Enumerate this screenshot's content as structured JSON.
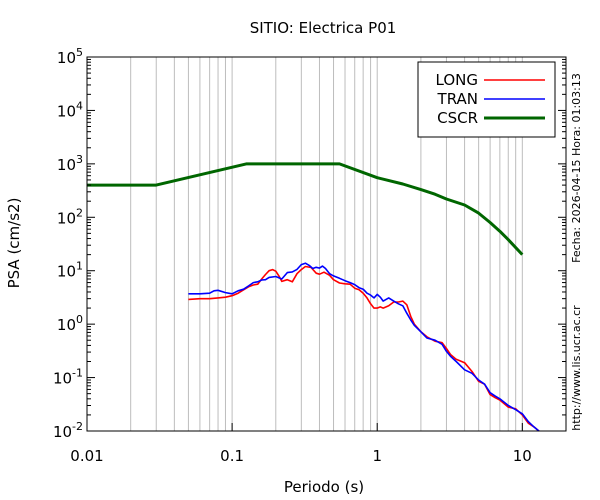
{
  "chart_data": {
    "type": "line",
    "title": "SITIO: Electrica P01",
    "xlabel": "Periodo (s)",
    "ylabel": "PSA (cm/s2)",
    "x_scale": "log",
    "y_scale": "log",
    "xlim": [
      0.01,
      20
    ],
    "ylim": [
      0.01,
      100000
    ],
    "grid": "x-minor",
    "legend_position": "top-right",
    "x_ticks": [
      {
        "value": 0.01,
        "label": "0.01"
      },
      {
        "value": 0.1,
        "label": "0.1"
      },
      {
        "value": 1,
        "label": "1"
      },
      {
        "value": 10,
        "label": "10"
      }
    ],
    "y_ticks": [
      {
        "value": 0.01,
        "base": "10",
        "exp": "-2"
      },
      {
        "value": 0.1,
        "base": "10",
        "exp": "-1"
      },
      {
        "value": 1,
        "base": "10",
        "exp": "0"
      },
      {
        "value": 10,
        "base": "10",
        "exp": "1"
      },
      {
        "value": 100,
        "base": "10",
        "exp": "2"
      },
      {
        "value": 1000,
        "base": "10",
        "exp": "3"
      },
      {
        "value": 10000,
        "base": "10",
        "exp": "4"
      },
      {
        "value": 100000,
        "base": "10",
        "exp": "5"
      }
    ],
    "series": [
      {
        "name": "LONG",
        "color": "#ff0000",
        "points": [
          [
            0.05,
            2.9
          ],
          [
            0.06,
            3.0
          ],
          [
            0.07,
            3.0
          ],
          [
            0.08,
            3.1
          ],
          [
            0.09,
            3.2
          ],
          [
            0.1,
            3.4
          ],
          [
            0.11,
            3.8
          ],
          [
            0.12,
            4.4
          ],
          [
            0.13,
            5.0
          ],
          [
            0.14,
            5.4
          ],
          [
            0.15,
            5.6
          ],
          [
            0.16,
            7.0
          ],
          [
            0.17,
            8.5
          ],
          [
            0.18,
            10.0
          ],
          [
            0.19,
            10.5
          ],
          [
            0.2,
            9.8
          ],
          [
            0.21,
            8.0
          ],
          [
            0.22,
            6.3
          ],
          [
            0.24,
            6.8
          ],
          [
            0.26,
            6.2
          ],
          [
            0.28,
            8.8
          ],
          [
            0.3,
            10.5
          ],
          [
            0.32,
            12.0
          ],
          [
            0.35,
            11.5
          ],
          [
            0.38,
            9.0
          ],
          [
            0.4,
            8.6
          ],
          [
            0.43,
            9.4
          ],
          [
            0.47,
            8.2
          ],
          [
            0.5,
            6.8
          ],
          [
            0.55,
            5.9
          ],
          [
            0.6,
            5.7
          ],
          [
            0.65,
            5.6
          ],
          [
            0.7,
            4.7
          ],
          [
            0.75,
            4.4
          ],
          [
            0.8,
            3.8
          ],
          [
            0.85,
            3.1
          ],
          [
            0.9,
            2.4
          ],
          [
            0.95,
            2.0
          ],
          [
            1.0,
            2.0
          ],
          [
            1.05,
            2.1
          ],
          [
            1.1,
            2.0
          ],
          [
            1.2,
            2.2
          ],
          [
            1.3,
            2.6
          ],
          [
            1.4,
            2.6
          ],
          [
            1.5,
            2.7
          ],
          [
            1.6,
            2.3
          ],
          [
            1.7,
            1.4
          ],
          [
            1.8,
            1.0
          ],
          [
            2.0,
            0.72
          ],
          [
            2.2,
            0.58
          ],
          [
            2.5,
            0.48
          ],
          [
            2.8,
            0.45
          ],
          [
            3.0,
            0.35
          ],
          [
            3.2,
            0.27
          ],
          [
            3.5,
            0.22
          ],
          [
            4.0,
            0.19
          ],
          [
            4.5,
            0.13
          ],
          [
            5.0,
            0.085
          ],
          [
            5.5,
            0.075
          ],
          [
            6.0,
            0.048
          ],
          [
            6.5,
            0.042
          ],
          [
            7.0,
            0.038
          ],
          [
            8.0,
            0.028
          ],
          [
            9.0,
            0.026
          ],
          [
            10.0,
            0.02
          ],
          [
            11.0,
            0.014
          ],
          [
            12.0,
            0.012
          ],
          [
            13.0,
            0.01
          ]
        ]
      },
      {
        "name": "TRAN",
        "color": "#0000ff",
        "points": [
          [
            0.05,
            3.7
          ],
          [
            0.06,
            3.7
          ],
          [
            0.07,
            3.8
          ],
          [
            0.075,
            4.2
          ],
          [
            0.08,
            4.3
          ],
          [
            0.09,
            3.9
          ],
          [
            0.1,
            3.7
          ],
          [
            0.11,
            4.2
          ],
          [
            0.12,
            4.5
          ],
          [
            0.13,
            5.2
          ],
          [
            0.14,
            6.0
          ],
          [
            0.15,
            6.2
          ],
          [
            0.16,
            6.7
          ],
          [
            0.17,
            6.8
          ],
          [
            0.18,
            7.5
          ],
          [
            0.2,
            7.8
          ],
          [
            0.22,
            7.0
          ],
          [
            0.24,
            9.2
          ],
          [
            0.26,
            9.5
          ],
          [
            0.28,
            10.6
          ],
          [
            0.3,
            13.0
          ],
          [
            0.32,
            13.8
          ],
          [
            0.34,
            12.6
          ],
          [
            0.36,
            11.0
          ],
          [
            0.38,
            11.6
          ],
          [
            0.4,
            11.2
          ],
          [
            0.42,
            12.2
          ],
          [
            0.44,
            11.0
          ],
          [
            0.47,
            8.8
          ],
          [
            0.5,
            8.0
          ],
          [
            0.55,
            7.2
          ],
          [
            0.6,
            6.5
          ],
          [
            0.65,
            6.0
          ],
          [
            0.7,
            5.5
          ],
          [
            0.75,
            4.8
          ],
          [
            0.8,
            4.5
          ],
          [
            0.85,
            3.8
          ],
          [
            0.9,
            3.5
          ],
          [
            0.95,
            3.1
          ],
          [
            1.0,
            3.6
          ],
          [
            1.05,
            3.2
          ],
          [
            1.1,
            2.7
          ],
          [
            1.2,
            3.1
          ],
          [
            1.3,
            2.7
          ],
          [
            1.4,
            2.4
          ],
          [
            1.5,
            2.2
          ],
          [
            1.6,
            1.6
          ],
          [
            1.7,
            1.2
          ],
          [
            1.8,
            0.95
          ],
          [
            2.0,
            0.72
          ],
          [
            2.2,
            0.55
          ],
          [
            2.5,
            0.5
          ],
          [
            2.8,
            0.42
          ],
          [
            3.0,
            0.31
          ],
          [
            3.2,
            0.25
          ],
          [
            3.5,
            0.2
          ],
          [
            4.0,
            0.14
          ],
          [
            4.5,
            0.12
          ],
          [
            5.0,
            0.09
          ],
          [
            5.5,
            0.075
          ],
          [
            6.0,
            0.052
          ],
          [
            6.5,
            0.045
          ],
          [
            7.0,
            0.04
          ],
          [
            8.0,
            0.03
          ],
          [
            9.0,
            0.025
          ],
          [
            10.0,
            0.021
          ],
          [
            11.0,
            0.015
          ],
          [
            12.0,
            0.012
          ],
          [
            13.0,
            0.01
          ]
        ]
      },
      {
        "name": "CSCR",
        "color": "#006600",
        "points": [
          [
            0.01,
            400
          ],
          [
            0.03,
            400
          ],
          [
            0.125,
            1000
          ],
          [
            0.55,
            1000
          ],
          [
            1.0,
            550
          ],
          [
            1.5,
            420
          ],
          [
            2.0,
            330
          ],
          [
            2.5,
            270
          ],
          [
            3.0,
            220
          ],
          [
            4.0,
            170
          ],
          [
            5.0,
            120
          ],
          [
            6.0,
            80
          ],
          [
            7.0,
            55
          ],
          [
            8.0,
            38
          ],
          [
            10.0,
            20
          ]
        ]
      }
    ],
    "side_texts": [
      "Fecha: 2026-04-15  Hora: 01:03:13",
      "http://www.lis.ucr.ac.cr"
    ]
  }
}
